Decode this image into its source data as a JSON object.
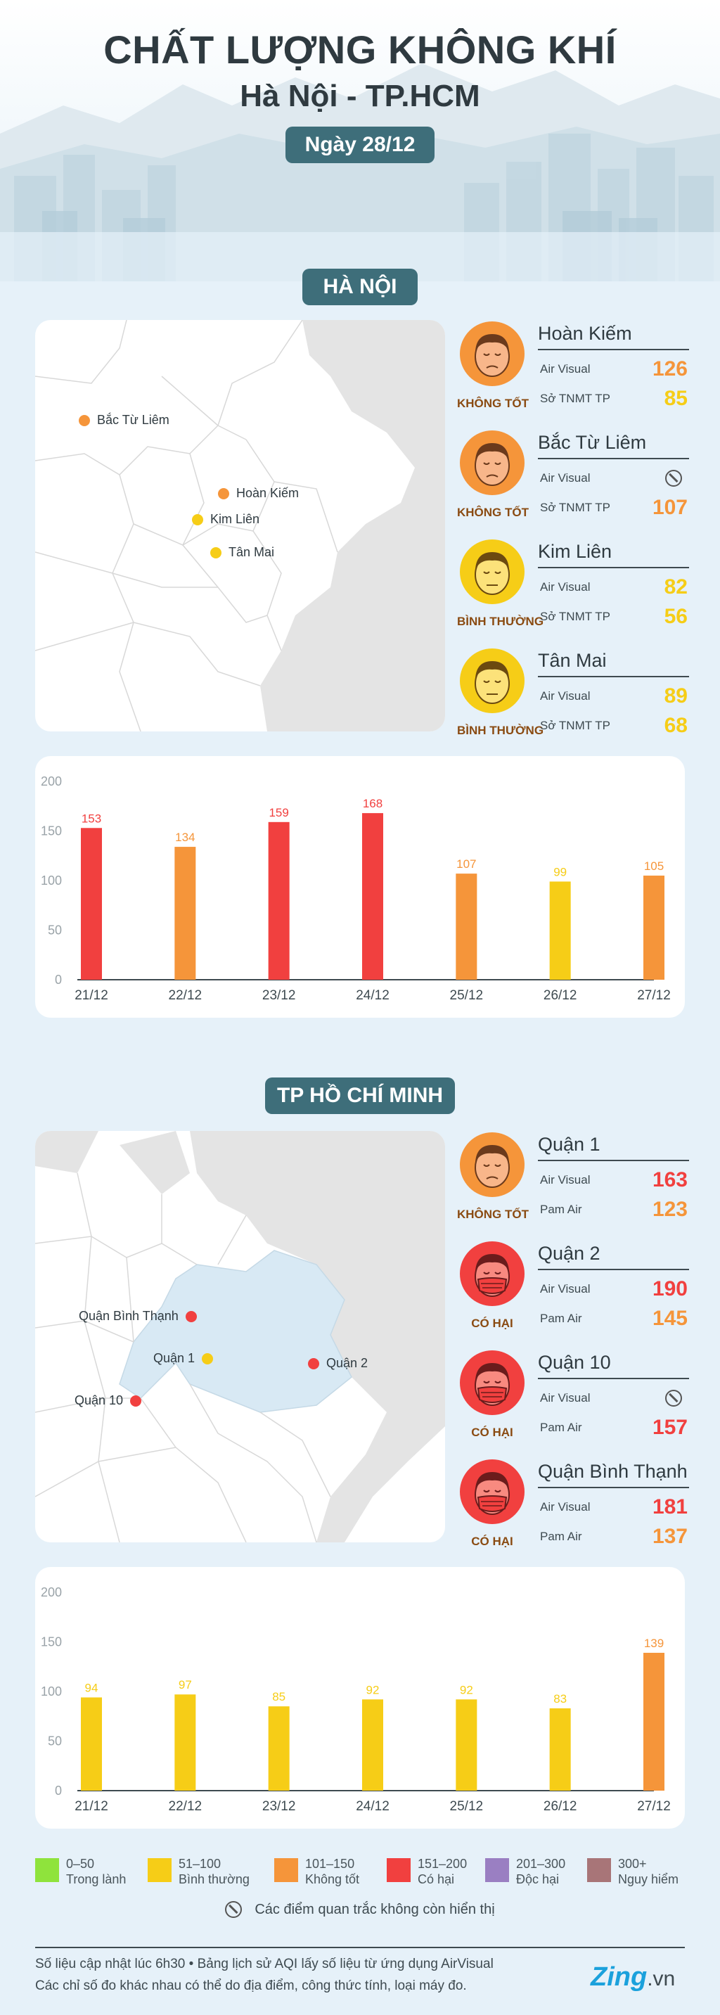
{
  "header": {
    "title": "CHẤT LƯỢNG KHÔNG KHÍ",
    "subtitle": "Hà Nội - TP.HCM",
    "date": "Ngày 28/12"
  },
  "colors": {
    "teal": "#3e6e7a",
    "orange": "#f5953a",
    "red": "#f1403f",
    "yellow": "#f6cd17",
    "green": "#8fe33c",
    "purple": "#9a7fc2",
    "maroon": "#a87578"
  },
  "hanoi": {
    "section_label": "HÀ NỘI",
    "map_labels": {
      "bac_tu_liem": "Bắc Từ Liêm",
      "hoan_kiem": "Hoàn Kiếm",
      "kim_lien": "Kim Liên",
      "tan_mai": "Tân Mai"
    },
    "stations": [
      {
        "name": "Hoàn Kiếm",
        "status": "KHÔNG TỐT",
        "face": "orange-face-icon",
        "rows": [
          {
            "label": "Air Visual",
            "value": "126"
          },
          {
            "label": "Sở TNMT TP",
            "value": "85"
          }
        ]
      },
      {
        "name": "Bắc Từ Liêm",
        "status": "KHÔNG TỐT",
        "face": "orange-face-icon",
        "rows": [
          {
            "label": "Air Visual",
            "value": ""
          },
          {
            "label": "Sở TNMT TP",
            "value": "107"
          }
        ]
      },
      {
        "name": "Kim Liên",
        "status": "BÌNH THƯỜNG",
        "face": "yellow-face-icon",
        "rows": [
          {
            "label": "Air Visual",
            "value": "82"
          },
          {
            "label": "Sở TNMT TP",
            "value": "56"
          }
        ]
      },
      {
        "name": "Tân Mai",
        "status": "BÌNH THƯỜNG",
        "face": "yellow-face-icon",
        "rows": [
          {
            "label": "Air Visual",
            "value": "89"
          },
          {
            "label": "Sở TNMT TP",
            "value": "68"
          }
        ]
      }
    ]
  },
  "hcm": {
    "section_label": "TP HỒ CHÍ MINH",
    "map_labels": {
      "binh_thanh": "Quận Bình Thạnh",
      "quan1": "Quận 1",
      "quan2": "Quận 2",
      "quan10": "Quận 10"
    },
    "stations": [
      {
        "name": "Quận 1",
        "status": "KHÔNG TỐT",
        "face": "orange-face-icon",
        "rows": [
          {
            "label": "Air Visual",
            "value": "163"
          },
          {
            "label": "Pam Air",
            "value": "123"
          }
        ]
      },
      {
        "name": "Quận 2",
        "status": "CÓ HẠI",
        "face": "red-mask-face-icon",
        "rows": [
          {
            "label": "Air Visual",
            "value": "190"
          },
          {
            "label": "Pam Air",
            "value": "145"
          }
        ]
      },
      {
        "name": "Quận 10",
        "status": "CÓ HẠI",
        "face": "red-mask-face-icon",
        "rows": [
          {
            "label": "Air Visual",
            "value": ""
          },
          {
            "label": "Pam Air",
            "value": "157"
          }
        ]
      },
      {
        "name": "Quận Bình Thạnh",
        "status": "CÓ HẠI",
        "face": "red-mask-face-icon",
        "rows": [
          {
            "label": "Air Visual",
            "value": "181"
          },
          {
            "label": "Pam Air",
            "value": "137"
          }
        ]
      }
    ]
  },
  "chart_data": [
    {
      "type": "bar",
      "categories": [
        "21/12",
        "22/12",
        "23/12",
        "24/12",
        "25/12",
        "26/12",
        "27/12"
      ],
      "values": [
        153,
        134,
        159,
        168,
        107,
        99,
        105
      ],
      "yticks": [
        0,
        50,
        100,
        150,
        200
      ],
      "ylim": [
        0,
        200
      ],
      "grid": false
    },
    {
      "type": "bar",
      "categories": [
        "21/12",
        "22/12",
        "23/12",
        "24/12",
        "25/12",
        "26/12",
        "27/12"
      ],
      "values": [
        94,
        97,
        85,
        92,
        92,
        83,
        139
      ],
      "yticks": [
        0,
        50,
        100,
        150,
        200
      ],
      "ylim": [
        0,
        200
      ],
      "grid": false
    }
  ],
  "legend": [
    {
      "range": "0–50",
      "label": "Trong lành",
      "color": "#8fe33c"
    },
    {
      "range": "51–100",
      "label": "Bình thường",
      "color": "#f6cd17"
    },
    {
      "range": "101–150",
      "label": "Không tốt",
      "color": "#f5953a"
    },
    {
      "range": "151–200",
      "label": "Có hại",
      "color": "#f1403f"
    },
    {
      "range": "201–300",
      "label": "Độc hại",
      "color": "#9a7fc2"
    },
    {
      "range": "300+",
      "label": "Nguy hiểm",
      "color": "#a87578"
    }
  ],
  "note": "Các điểm quan trắc không còn hiển thị",
  "footer": {
    "line1": "Số liệu cập nhật lúc 6h30 • Bảng lịch sử AQI lấy số liệu từ ứng dụng AirVisual",
    "line2": "Các chỉ số đo khác nhau có thể do địa điểm, công thức tính, loại máy đo.",
    "logo_main": "Zing",
    "logo_suffix": ".vn"
  }
}
